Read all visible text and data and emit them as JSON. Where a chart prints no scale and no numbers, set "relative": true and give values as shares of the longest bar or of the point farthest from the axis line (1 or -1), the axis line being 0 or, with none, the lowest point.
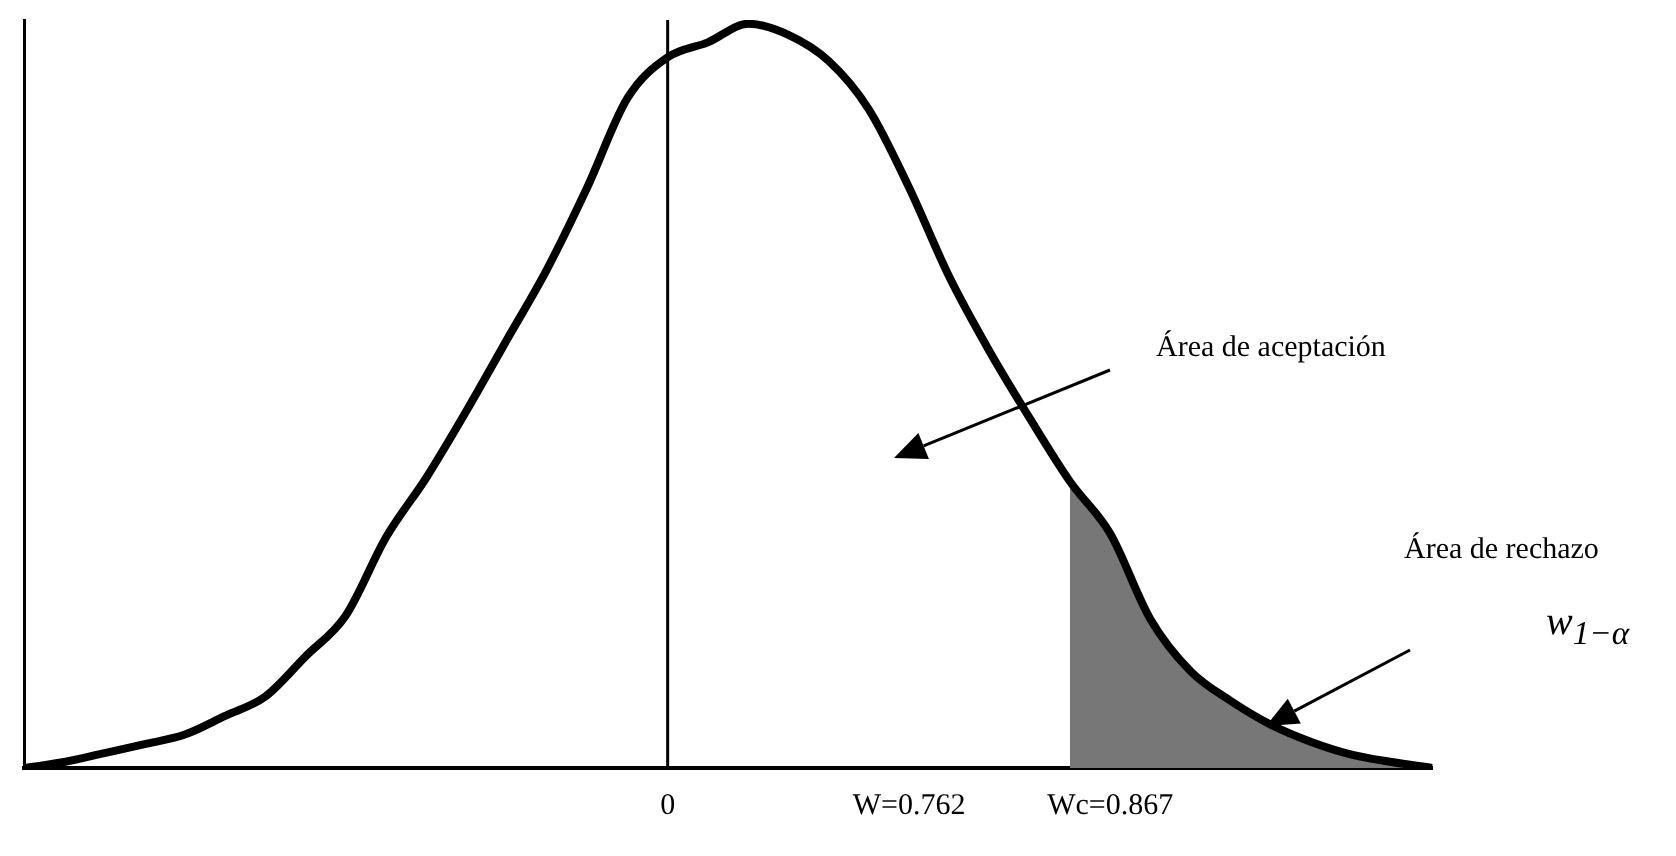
{
  "chart_data": {
    "type": "line",
    "relative": true,
    "categories": [
      null,
      null,
      null,
      null,
      null,
      null,
      null,
      null,
      null,
      null,
      null,
      null,
      null,
      null,
      null,
      null,
      "0",
      null,
      null,
      null,
      null,
      null,
      "W=0.762",
      null,
      null,
      null,
      null,
      "Wc=0.867",
      null,
      null,
      null,
      null,
      null,
      null,
      null,
      null
    ],
    "series": [
      {
        "type": "line",
        "color": "#000000",
        "values": [
          0,
          0.008,
          0.02,
          0.032,
          0.045,
          0.07,
          0.096,
          0.15,
          0.205,
          0.31,
          0.39,
          0.48,
          0.575,
          0.67,
          0.78,
          0.9,
          0.955,
          0.975,
          1,
          0.985,
          0.95,
          0.885,
          0.78,
          0.66,
          0.56,
          0.47,
          0.385,
          0.315,
          0.2,
          0.13,
          0.09,
          0.058,
          0.035,
          0.018,
          0.008,
          0
        ]
      },
      {
        "type": "area",
        "color": "#777777",
        "values": [
          null,
          null,
          null,
          null,
          null,
          null,
          null,
          null,
          null,
          null,
          null,
          null,
          null,
          null,
          null,
          null,
          null,
          null,
          null,
          null,
          null,
          null,
          null,
          null,
          null,
          null,
          0.385,
          0.315,
          0.2,
          0.13,
          0.09,
          0.058,
          0.035,
          0.018,
          0.008,
          0
        ]
      }
    ],
    "ref_lines": [
      {
        "axis": "x",
        "value": "0",
        "color": "#000000"
      }
    ],
    "annotations": [
      "Área de aceptación",
      "Área de rechazo",
      "w$_{1−α}$"
    ],
    "grid": false,
    "legend": false
  }
}
